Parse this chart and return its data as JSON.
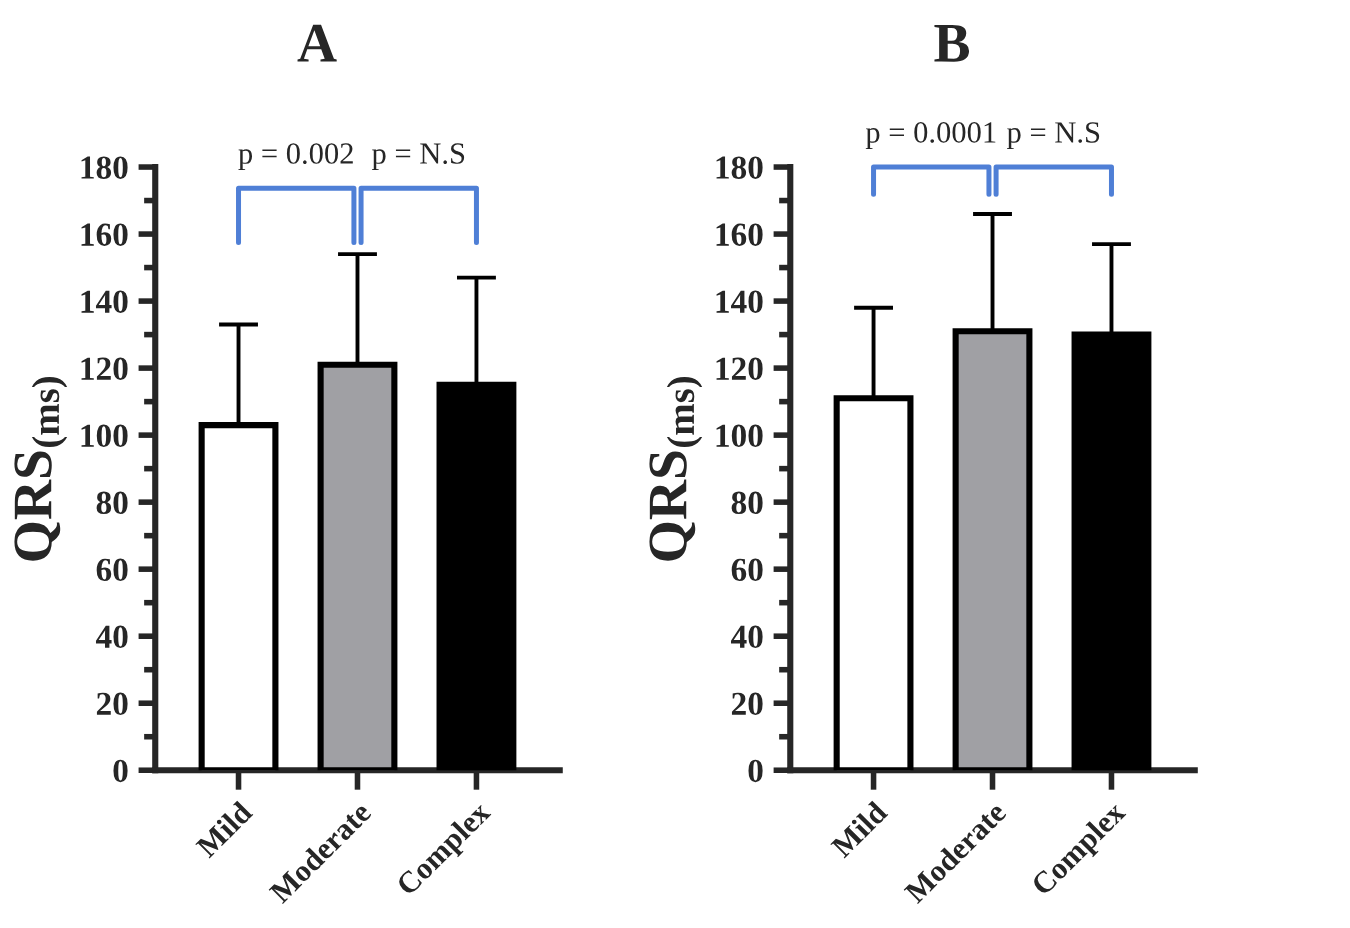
{
  "chart_data": [
    {
      "type": "bar",
      "title": "A",
      "ylabel": "QRS$_{(ms)}$",
      "categories": [
        "Mild",
        "Moderate",
        "Complex"
      ],
      "values": [
        103,
        121,
        115
      ],
      "colors": [
        "#ffffff",
        "#a0a0a4",
        "#000000"
      ],
      "errors": [
        [
          103,
          133
        ],
        [
          121,
          154
        ],
        [
          115,
          147
        ]
      ],
      "ylim": [
        0,
        180
      ],
      "yticks": [
        0,
        20,
        40,
        60,
        80,
        100,
        120,
        140,
        160,
        180
      ],
      "grid": false,
      "annotations": [
        "p = 0.002",
        "p = N.S"
      ]
    },
    {
      "type": "bar",
      "title": "B",
      "ylabel": "QRS$_{(ms)}$",
      "categories": [
        "Mild",
        "Moderate",
        "Complex"
      ],
      "values": [
        111,
        131,
        130
      ],
      "colors": [
        "#ffffff",
        "#a0a0a4",
        "#000000"
      ],
      "errors": [
        [
          111,
          138
        ],
        [
          131,
          166
        ],
        [
          130,
          157
        ]
      ],
      "ylim": [
        0,
        180
      ],
      "yticks": [
        0,
        20,
        40,
        60,
        80,
        100,
        120,
        140,
        160,
        180
      ],
      "grid": false,
      "annotations": [
        "p = 0.0001",
        "p = N.S"
      ]
    }
  ]
}
